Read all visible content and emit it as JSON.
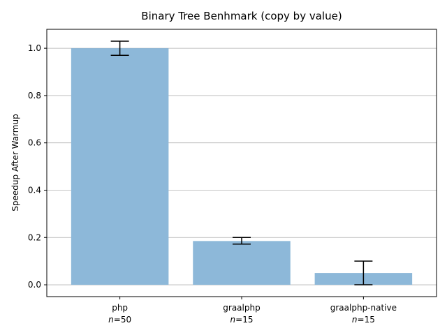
{
  "chart_data": {
    "type": "bar",
    "title": "Binary Tree Benhmark (copy by value)",
    "xlabel": "",
    "ylabel": "Speedup After Warmup",
    "categories": [
      "php",
      "graalphp",
      "graalphp-native"
    ],
    "n_values": [
      "50",
      "15",
      "15"
    ],
    "n_prefix": "n",
    "values": [
      1.0,
      0.185,
      0.05
    ],
    "error_low": [
      0.97,
      0.172,
      0.0
    ],
    "error_high": [
      1.03,
      0.2,
      0.1
    ],
    "ylim": [
      -0.05,
      1.08
    ],
    "yticks": [
      "0.0",
      "0.2",
      "0.4",
      "0.6",
      "0.8",
      "1.0"
    ],
    "grid": "horizontal",
    "bar_color": "#8db8d9",
    "bar_alpha": 1.0,
    "grid_color": "#b0b0b0",
    "error_color": "#000000"
  }
}
